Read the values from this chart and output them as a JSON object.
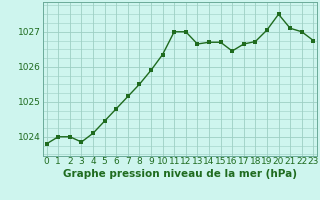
{
  "x": [
    0,
    1,
    2,
    3,
    4,
    5,
    6,
    7,
    8,
    9,
    10,
    11,
    12,
    13,
    14,
    15,
    16,
    17,
    18,
    19,
    20,
    21,
    22,
    23
  ],
  "y": [
    1023.8,
    1024.0,
    1024.0,
    1023.85,
    1024.1,
    1024.45,
    1024.8,
    1025.15,
    1025.5,
    1025.9,
    1026.35,
    1027.0,
    1027.0,
    1026.65,
    1026.7,
    1026.7,
    1026.45,
    1026.65,
    1026.72,
    1027.05,
    1027.5,
    1027.1,
    1027.0,
    1026.75
  ],
  "line_color": "#1f6b1f",
  "marker": "s",
  "marker_size": 2.2,
  "line_width": 1.0,
  "bg_color": "#cef5ee",
  "grid_color": "#9dcfc4",
  "xlabel": "Graphe pression niveau de la mer (hPa)",
  "xlabel_color": "#1f6b1f",
  "xlabel_fontsize": 7.5,
  "ytick_labels": [
    "1024",
    "1025",
    "1026",
    "1027"
  ],
  "ytick_values": [
    1024,
    1025,
    1026,
    1027
  ],
  "ylim": [
    1023.45,
    1027.85
  ],
  "xlim": [
    -0.3,
    23.3
  ],
  "tick_color": "#1f6b1f",
  "tick_fontsize": 6.5,
  "spine_color": "#6aaa99"
}
